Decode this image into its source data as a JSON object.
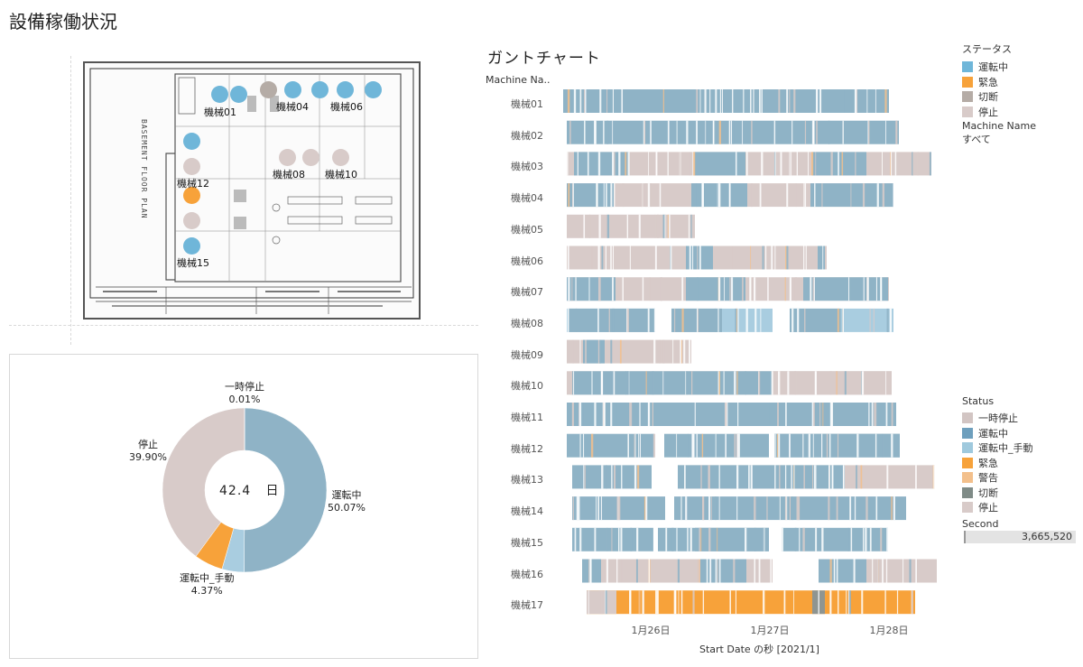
{
  "page_title": "設備稼働状況",
  "floor_plan": {
    "vertical_text": "BASEMENT FLOOR PLAN",
    "machine_labels": [
      "機械01",
      "機械04",
      "機械06",
      "機械08",
      "機械10",
      "機械12",
      "機械15"
    ]
  },
  "donut": {
    "center_value": "42.4",
    "center_unit": "日",
    "segments": [
      {
        "name": "運転中",
        "pct_label": "50.07%",
        "value": 50.07,
        "color": "#8fb3c6"
      },
      {
        "name": "運転中_手動",
        "pct_label": "4.37%",
        "value": 4.37,
        "color": "#a9cde0"
      },
      {
        "name": "緊急",
        "pct_label": "",
        "value": 5.65,
        "color": "#f7a23a"
      },
      {
        "name": "停止",
        "pct_label": "39.90%",
        "value": 39.9,
        "color": "#d8cbc9"
      },
      {
        "name": "一時停止",
        "pct_label": "0.01%",
        "value": 0.01,
        "color": "#cbbcbb"
      }
    ]
  },
  "gantt": {
    "title": "ガントチャート",
    "row_header": "Machine Na..",
    "x_axis_title": "Start Date の秒 [2021/1]",
    "x_ticks": [
      "1月26日",
      "1月27日",
      "1月28日"
    ],
    "rows": [
      "機械01",
      "機械02",
      "機械03",
      "機械04",
      "機械05",
      "機械06",
      "機械07",
      "機械08",
      "機械09",
      "機械10",
      "機械11",
      "機械12",
      "機械13",
      "機械14",
      "機械15",
      "機械16",
      "機械17"
    ]
  },
  "legend_status_jp": {
    "title": "ステータス",
    "items": [
      {
        "label": "運転中",
        "color": "#6fb6d9"
      },
      {
        "label": "緊急",
        "color": "#f7a23a"
      },
      {
        "label": "切断",
        "color": "#b5aca6"
      },
      {
        "label": "停止",
        "color": "#d8cbc9"
      }
    ]
  },
  "filter": {
    "title": "Machine Name",
    "value": "すべて"
  },
  "legend_status": {
    "title": "Status",
    "items": [
      {
        "label": "一時停止",
        "color": "#d2c5c3"
      },
      {
        "label": "運転中",
        "color": "#6e9fbd"
      },
      {
        "label": "運転中_手動",
        "color": "#9fc9dd"
      },
      {
        "label": "緊急",
        "color": "#f7a23a"
      },
      {
        "label": "警告",
        "color": "#f3c08c"
      },
      {
        "label": "切断",
        "color": "#7f8b87"
      },
      {
        "label": "停止",
        "color": "#d8cbc9"
      }
    ]
  },
  "second_filter": {
    "title": "Second",
    "value": "3,665,520"
  }
}
